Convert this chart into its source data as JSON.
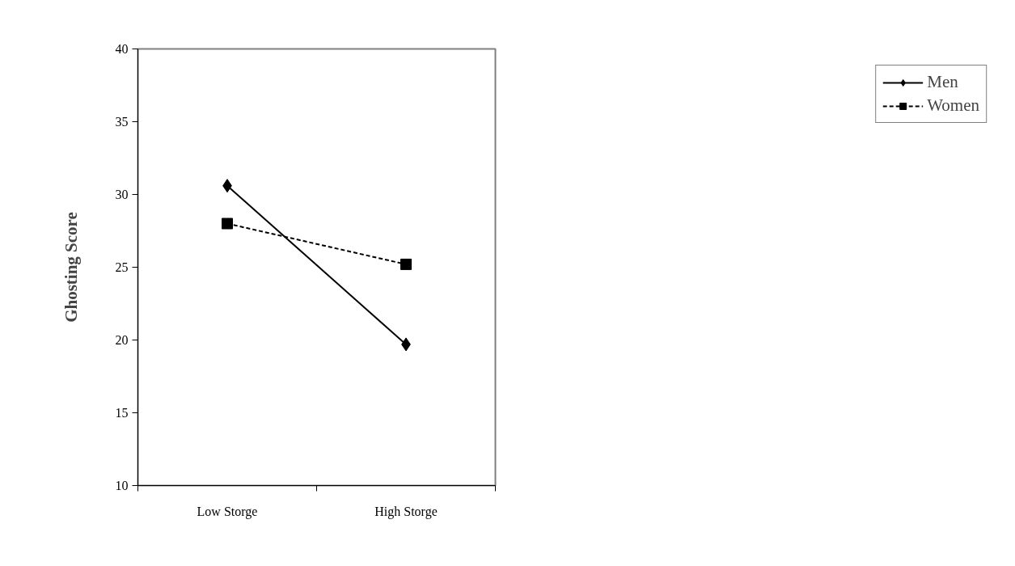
{
  "chart_data": {
    "type": "line",
    "ylabel": "Ghosting Score",
    "categories": [
      "Low Storge",
      "High Storge"
    ],
    "series": [
      {
        "name": "Men",
        "color": "#000000",
        "values": [
          30.6,
          19.7
        ],
        "marker": "diamond",
        "line_style": "solid"
      },
      {
        "name": "Women",
        "color": "#000000",
        "values": [
          28.0,
          25.2
        ],
        "marker": "square",
        "line_style": "dashed"
      }
    ],
    "ylim": [
      10,
      40
    ],
    "yticks": [
      10,
      15,
      20,
      25,
      30,
      35,
      40
    ],
    "grid": false,
    "legend": "right"
  }
}
